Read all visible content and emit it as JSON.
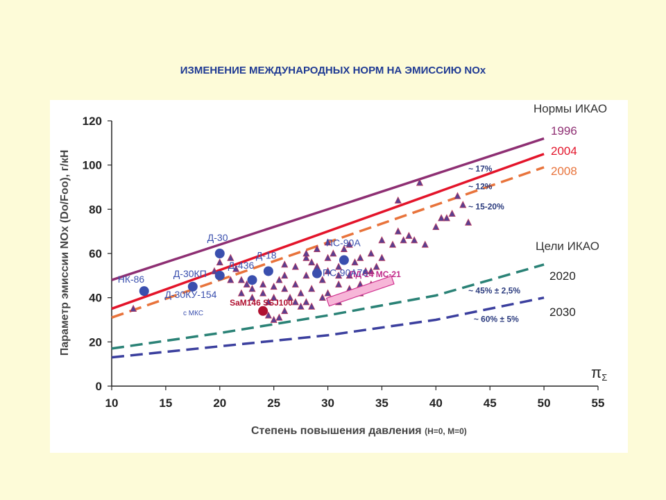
{
  "slide_title": "ИЗМЕНЕНИЕ МЕЖДУНАРОДНЫХ НОРМ НА ЭМИССИЮ NOx",
  "chart_data": {
    "type": "scatter",
    "xlabel": "Степень повышения давления",
    "xlabel_note": "(Н=0, М=0)",
    "pi_symbol": "π",
    "pi_subscript": "Σ",
    "ylabel": "Параметр эмиссии NOx  (Do/Foo), г/кН",
    "xlim": [
      10,
      55
    ],
    "ylim": [
      0,
      120
    ],
    "xticks": [
      10,
      15,
      20,
      25,
      30,
      35,
      40,
      45,
      50,
      55
    ],
    "yticks": [
      0,
      20,
      40,
      60,
      80,
      100,
      120
    ],
    "grid": false,
    "legend": {
      "standards_header": "Нормы ИКАО",
      "goals_header": "Цели ИКАО"
    },
    "series": [
      {
        "name": "1996",
        "style": "solid",
        "color": "#8e2f73",
        "x": [
          10,
          50
        ],
        "y": [
          48,
          112
        ]
      },
      {
        "name": "2004",
        "style": "solid",
        "color": "#e3142a",
        "x": [
          10,
          50
        ],
        "y": [
          35,
          105
        ]
      },
      {
        "name": "2008",
        "style": "dashed",
        "color": "#e8733b",
        "x": [
          10,
          50
        ],
        "y": [
          31,
          99
        ]
      },
      {
        "name": "2020",
        "style": "dashed",
        "color": "#2a8276",
        "x": [
          10,
          20,
          30,
          40,
          50
        ],
        "y": [
          17,
          24,
          32,
          41,
          55
        ]
      },
      {
        "name": "2030",
        "style": "dashed",
        "color": "#3b3f9e",
        "x": [
          10,
          20,
          30,
          40,
          50
        ],
        "y": [
          13,
          18,
          23,
          30,
          40
        ]
      }
    ],
    "engines": [
      {
        "label": "НК-86",
        "x": 13,
        "y": 43,
        "color": "#3a4fae"
      },
      {
        "label": "Д-30КП",
        "x": 17.5,
        "y": 45,
        "color": "#3a4fae"
      },
      {
        "label": "Д-30",
        "x": 20,
        "y": 60,
        "color": "#3a4fae"
      },
      {
        "label": "Д-436",
        "x": 20,
        "y": 50,
        "color": "#3a4fae"
      },
      {
        "label": "Д-30КУ-154",
        "x": 23,
        "y": 48,
        "color": "#3a4fae"
      },
      {
        "label": "Д-18",
        "x": 24.5,
        "y": 52,
        "color": "#3a4fae"
      },
      {
        "label": "ПС-90А76",
        "x": 29,
        "y": 51,
        "color": "#3a4fae"
      },
      {
        "label": "ПС-90А",
        "x": 31.5,
        "y": 57,
        "color": "#3a4fae"
      },
      {
        "label": "SaM146 SSJ100",
        "x": 24,
        "y": 34,
        "color": "#b01030"
      }
    ],
    "engine_note": "с МКС",
    "pd14": {
      "label": "ПД-14 МС-21",
      "x": [
        30,
        36
      ],
      "y": [
        38,
        48
      ]
    },
    "triangles": [
      [
        12,
        35
      ],
      [
        19.5,
        52
      ],
      [
        20,
        56
      ],
      [
        21,
        58
      ],
      [
        21.5,
        53
      ],
      [
        22,
        48
      ],
      [
        22.5,
        46
      ],
      [
        23,
        44
      ],
      [
        23,
        40
      ],
      [
        24,
        46
      ],
      [
        24,
        42
      ],
      [
        24.5,
        38
      ],
      [
        25,
        45
      ],
      [
        25,
        40
      ],
      [
        25.5,
        48
      ],
      [
        26,
        50
      ],
      [
        26,
        44
      ],
      [
        26.5,
        40
      ],
      [
        27,
        54
      ],
      [
        27,
        46
      ],
      [
        27.5,
        42
      ],
      [
        27.5,
        36
      ],
      [
        28,
        50
      ],
      [
        28,
        58
      ],
      [
        28,
        60
      ],
      [
        28.5,
        56
      ],
      [
        28.5,
        44
      ],
      [
        29,
        62
      ],
      [
        29,
        54
      ],
      [
        29.5,
        48
      ],
      [
        29.5,
        40
      ],
      [
        30,
        65
      ],
      [
        30,
        58
      ],
      [
        30.5,
        60
      ],
      [
        31,
        46
      ],
      [
        31,
        54
      ],
      [
        31.5,
        62
      ],
      [
        32,
        64
      ],
      [
        32,
        50
      ],
      [
        32.5,
        56
      ],
      [
        33,
        58
      ],
      [
        33,
        46
      ],
      [
        33.5,
        52
      ],
      [
        34,
        52
      ],
      [
        34,
        60
      ],
      [
        34.5,
        54
      ],
      [
        35,
        66
      ],
      [
        35,
        58
      ],
      [
        35.5,
        48
      ],
      [
        36,
        64
      ],
      [
        36.5,
        70
      ],
      [
        37,
        66
      ],
      [
        37.5,
        68
      ],
      [
        38,
        66
      ],
      [
        38.5,
        92
      ],
      [
        39,
        64
      ],
      [
        40,
        72
      ],
      [
        40.5,
        76
      ],
      [
        41,
        76
      ],
      [
        41.5,
        78
      ],
      [
        42,
        86
      ],
      [
        42.5,
        82
      ],
      [
        43,
        74
      ],
      [
        24.5,
        32
      ],
      [
        25,
        30
      ],
      [
        25.5,
        31
      ],
      [
        26,
        34
      ],
      [
        28,
        38
      ],
      [
        28.5,
        36
      ],
      [
        30,
        42
      ],
      [
        31,
        38
      ],
      [
        32,
        44
      ],
      [
        33,
        42
      ],
      [
        34,
        46
      ],
      [
        29,
        54
      ],
      [
        30,
        52
      ],
      [
        31,
        50
      ],
      [
        36.5,
        84
      ],
      [
        21,
        48
      ],
      [
        22,
        42
      ],
      [
        26,
        55
      ],
      [
        27,
        38
      ]
    ],
    "annotations": [
      {
        "text": "~ 17%",
        "x": 43,
        "y": 97
      },
      {
        "text": "~ 12%",
        "x": 43,
        "y": 89
      },
      {
        "text": "~ 15-20%",
        "x": 43,
        "y": 80
      },
      {
        "text": "~ 45% ± 2,5%",
        "x": 43,
        "y": 42
      },
      {
        "text": "~ 60% ± 5%",
        "x": 43.5,
        "y": 29
      }
    ]
  }
}
